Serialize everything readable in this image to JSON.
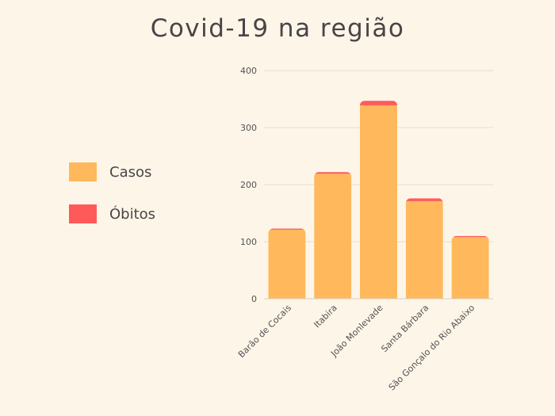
{
  "chart_data": {
    "type": "bar",
    "stacked": true,
    "title": "Covid-19 na região",
    "xlabel": "",
    "ylabel": "",
    "ylim": [
      0,
      400
    ],
    "yticks": [
      0,
      100,
      200,
      300,
      400
    ],
    "grid": true,
    "legend_position": "left",
    "categories": [
      "Barão de Cocais",
      "Itabira",
      "João Monlevade",
      "Santa Bárbara",
      "São Gonçalo do Rio Abaixo"
    ],
    "series": [
      {
        "name": "Casos",
        "color": "#ffb85c",
        "values": [
          121,
          219,
          339,
          171,
          108
        ]
      },
      {
        "name": "Óbitos",
        "color": "#ff5a5a",
        "values": [
          2,
          3,
          8,
          5,
          2
        ]
      }
    ]
  }
}
